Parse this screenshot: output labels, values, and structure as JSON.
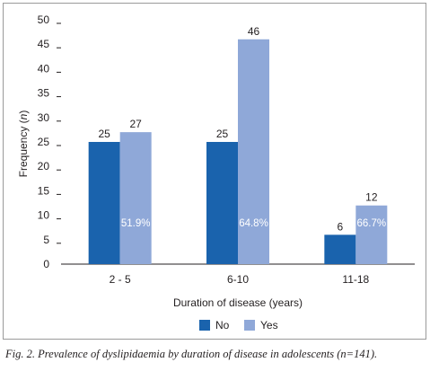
{
  "chart_data": {
    "type": "bar",
    "categories": [
      "2 - 5",
      "6-10",
      "11-18"
    ],
    "series": [
      {
        "name": "No",
        "values": [
          25,
          25,
          6
        ],
        "color": "#1a63ad"
      },
      {
        "name": "Yes",
        "values": [
          27,
          46,
          12
        ],
        "color": "#8fa8d8"
      }
    ],
    "inside_labels": [
      "51.9%",
      "64.8%",
      "66.7%"
    ],
    "yticks": [
      0,
      5,
      10,
      15,
      20,
      25,
      30,
      35,
      40,
      45,
      50
    ],
    "ylim": [
      0,
      50
    ],
    "ylabel": "Frequency (n)",
    "xlabel": "Duration of disease (years)",
    "grid": false,
    "legend_position": "bottom"
  },
  "caption": "Fig. 2. Prevalence of dyslipidaemia by duration of disease in adolescents (n=141)."
}
